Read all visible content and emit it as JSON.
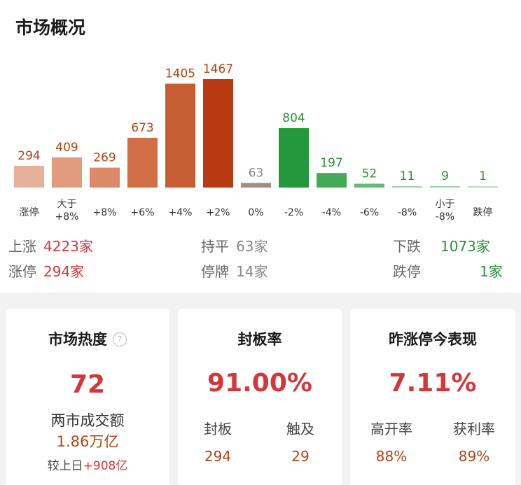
{
  "overview": {
    "title": "市场概况",
    "chart_data": {
      "type": "bar",
      "categories": [
        "涨停",
        "大于\n+8%",
        "+8%",
        "+6%",
        "+4%",
        "+2%",
        "0%",
        "-2%",
        "-4%",
        "-6%",
        "-8%",
        "小于\n-8%",
        "跌停"
      ],
      "values": [
        294,
        409,
        269,
        673,
        1405,
        1467,
        63,
        804,
        197,
        52,
        11,
        9,
        1
      ],
      "colors": [
        "#e6b09a",
        "#e19c80",
        "#da8a69",
        "#d26e46",
        "#c75d32",
        "#b83a12",
        "#9d8e84",
        "#24983c",
        "#45aa58",
        "#66b977",
        "#9fd4a9",
        "#9fd4a9",
        "#b6dfbd"
      ],
      "label_colors": [
        "#b24512",
        "#b24512",
        "#b24512",
        "#b24512",
        "#b24512",
        "#b24512",
        "#888888",
        "#2c8f3c",
        "#2c8f3c",
        "#2c8f3c",
        "#2c8f3c",
        "#2c8f3c",
        "#2c8f3c"
      ],
      "ylim": [
        0,
        1467
      ]
    },
    "stats": {
      "up_label": "上涨",
      "up_value": "4223家",
      "flat_label": "持平",
      "flat_value": "63家",
      "down_label": "下跌",
      "down_value": "1073家",
      "limit_up_label": "涨停",
      "limit_up_value": "294家",
      "suspended_label": "停牌",
      "suspended_value": "14家",
      "limit_down_label": "跌停",
      "limit_down_value": "1家"
    }
  },
  "cards": {
    "heat": {
      "title": "市场热度",
      "help_icon": "?",
      "value": "72",
      "turnover_label": "两市成交额",
      "turnover_value": "1.86万亿",
      "compare_label": "较上日",
      "compare_value": "+908亿"
    },
    "seal": {
      "title": "封板率",
      "value": "91.00%",
      "left_label": "封板",
      "left_value": "294",
      "right_label": "触及",
      "right_value": "29"
    },
    "yesterday": {
      "title": "昨涨停今表现",
      "value": "7.11%",
      "left_label": "高开率",
      "left_value": "88%",
      "right_label": "获利率",
      "right_value": "89%"
    }
  },
  "colors": {
    "red": "#d4373a",
    "green": "#2c8f3c",
    "orange": "#b24512"
  }
}
